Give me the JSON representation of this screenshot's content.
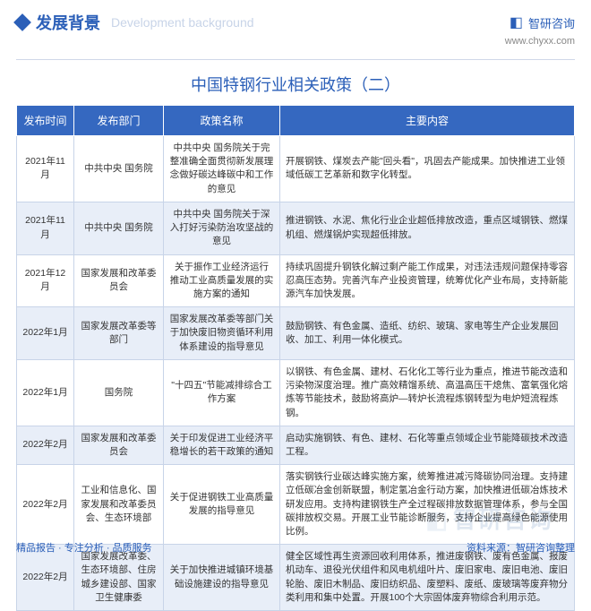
{
  "header": {
    "title_cn": "发展背景",
    "title_en": "Development background",
    "logo_text": "智研咨询",
    "url": "www.chyxx.com"
  },
  "table": {
    "title": "中国特钢行业相关政策（二）",
    "header_bg": "#3568c0",
    "header_fg": "#ffffff",
    "row_alt_bg": "#e8eef8",
    "border_color": "#c8d4e8",
    "columns": [
      "发布时间",
      "发布部门",
      "政策名称",
      "主要内容"
    ],
    "rows": [
      {
        "date": "2021年11月",
        "dept": "中共中央 国务院",
        "policy": "中共中央 国务院关于完整准确全面贯彻新发展理念做好碳达峰碳中和工作的意见",
        "content": "开展钢铁、煤炭去产能\"回头看\"，巩固去产能成果。加快推进工业领域低碳工艺革新和数字化转型。"
      },
      {
        "date": "2021年11月",
        "dept": "中共中央 国务院",
        "policy": "中共中央 国务院关于深入打好污染防治攻坚战的意见",
        "content": "推进钢铁、水泥、焦化行业企业超低排放改造，重点区域钢铁、燃煤机组、燃煤锅炉实现超低排放。"
      },
      {
        "date": "2021年12月",
        "dept": "国家发展和改革委员会",
        "policy": "关于振作工业经济运行 推动工业高质量发展的实施方案的通知",
        "content": "持续巩固提升钢铁化解过剩产能工作成果，对违法违规问题保持零容忍高压态势。完善汽车产业投资管理，统筹优化产业布局，支持新能源汽车加快发展。"
      },
      {
        "date": "2022年1月",
        "dept": "国家发展改革委等部门",
        "policy": "国家发展改革委等部门关于加快废旧物资循环利用体系建设的指导意见",
        "content": "鼓励钢铁、有色金属、造纸、纺织、玻璃、家电等生产企业发展回收、加工、利用一体化模式。"
      },
      {
        "date": "2022年1月",
        "dept": "国务院",
        "policy": "\"十四五\"节能减排综合工作方案",
        "content": "以钢铁、有色金属、建材、石化化工等行业为重点，推进节能改造和污染物深度治理。推广高效精馏系统、高温高压干熄焦、富氧强化熔炼等节能技术，鼓励将高炉—转炉长流程炼钢转型为电炉短流程炼钢。"
      },
      {
        "date": "2022年2月",
        "dept": "国家发展和改革委员会",
        "policy": "关于印发促进工业经济平稳增长的若干政策的通知",
        "content": "启动实施钢铁、有色、建材、石化等重点领域企业节能降碳技术改造工程。"
      },
      {
        "date": "2022年2月",
        "dept": "工业和信息化、国家发展和改革委员会、生态环境部",
        "policy": "关于促进钢铁工业高质量发展的指导意见",
        "content": "落实钢铁行业碳达峰实施方案，统筹推进减污降碳协同治理。支持建立低碳冶金创新联盟，制定氢冶金行动方案，加快推进低碳冶炼技术研发应用。支持构建钢铁生产全过程碳排放数据管理体系，参与全国碳排放权交易。开展工业节能诊断服务，支持企业提高绿色能源使用比例。"
      },
      {
        "date": "2022年2月",
        "dept": "国家发展改革委、生态环境部、住房城乡建设部、国家卫生健康委",
        "policy": "关于加快推进城镇环境基础设施建设的指导意见",
        "content": "健全区域性再生资源回收利用体系，推进废钢铁、废有色金属、报废机动车、退役光伏组件和风电机组叶片、废旧家电、废旧电池、废旧轮胎、废旧木制品、废旧纺织品、废塑料、废纸、废玻璃等废弃物分类利用和集中处置。开展100个大宗固体废弃物综合利用示范。"
      }
    ]
  },
  "footer": {
    "left": "精品报告 · 专注分析 · 品质服务",
    "right": "资料来源：智研咨询整理"
  },
  "watermark": "智研咨询",
  "colors": {
    "primary": "#2b5fb8",
    "header_bg": "#3568c0"
  }
}
